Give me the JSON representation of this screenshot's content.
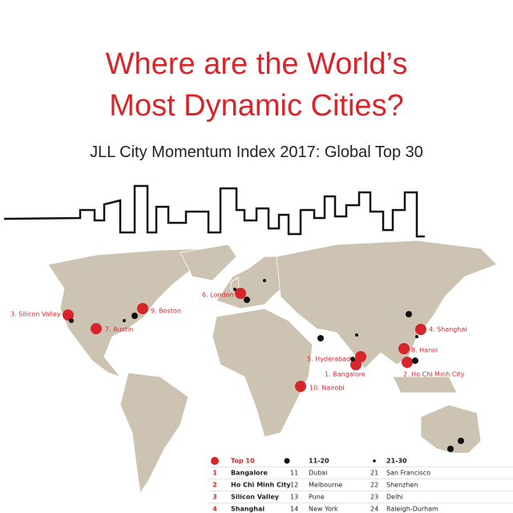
{
  "title": [
    "Where are the World’s",
    "Most Dynamic Cities?"
  ],
  "subtitle": "JLL City Momentum Index 2017: Global Top 30",
  "map_labels": [
    "3. Silicon Valley",
    "9. Boston",
    "7. Austin",
    "6. London",
    "4. Shanghai",
    "5. Hyderabad",
    "8. Hanoi",
    "1. Bangalore",
    "2. Ho Chi Minh City",
    "10. Nairobi"
  ],
  "legend": {
    "headers": [
      "Top 10",
      "11-20",
      "21-30"
    ],
    "rows": [
      [
        1,
        "Bangalore",
        11,
        "Dubai",
        21,
        "San Francisco"
      ],
      [
        2,
        "Ho Chi Minh City",
        12,
        "Melbourne",
        22,
        "Shenzhen"
      ],
      [
        3,
        "Silicon Valley",
        13,
        "Pune",
        23,
        "Delhi"
      ],
      [
        4,
        "Shanghai",
        14,
        "New York",
        24,
        "Raleigh-Durham"
      ]
    ]
  }
}
